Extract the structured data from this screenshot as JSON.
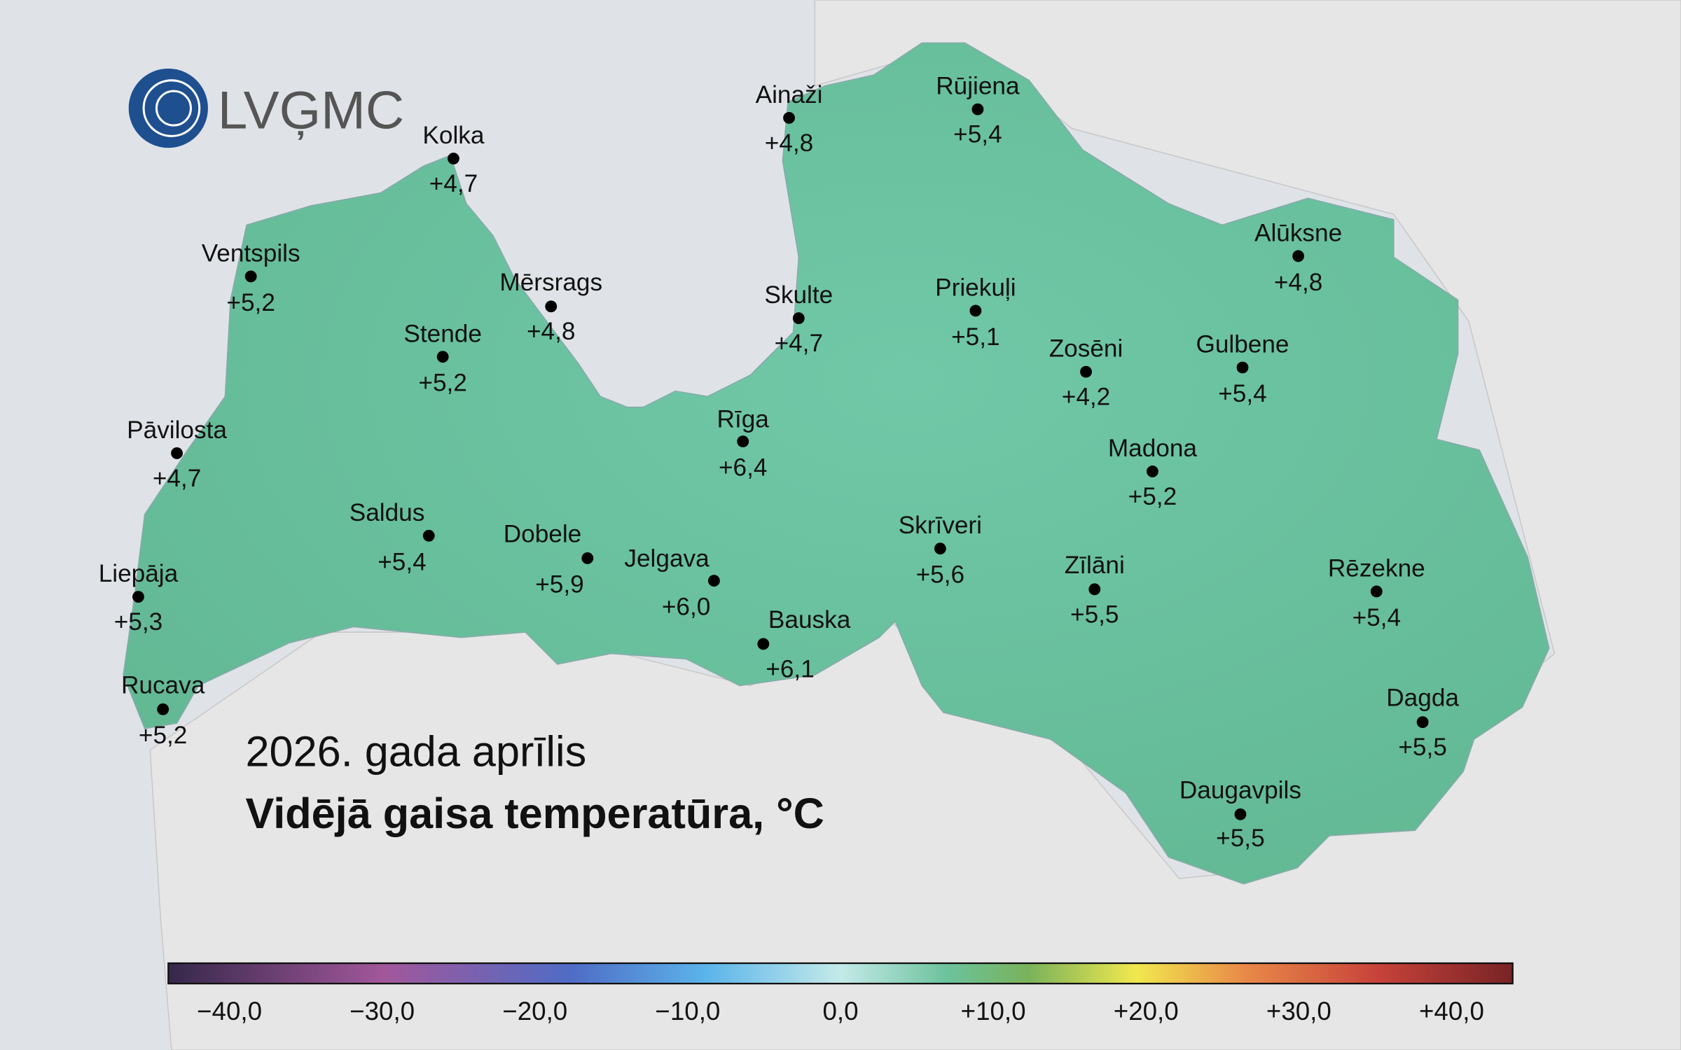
{
  "logo": "LVĢMC",
  "title": {
    "period": "2026. gada aprīlis",
    "subject": "Vidējā gaisa temperatūra, °C"
  },
  "stations": [
    {
      "name": "Kolka",
      "value": "+4,7"
    },
    {
      "name": "Ventspils",
      "value": "+5,2"
    },
    {
      "name": "Mērsrags",
      "value": "+4,8"
    },
    {
      "name": "Stende",
      "value": "+5,2"
    },
    {
      "name": "Pāvilosta",
      "value": "+4,7"
    },
    {
      "name": "Saldus",
      "value": "+5,4"
    },
    {
      "name": "Liepāja",
      "value": "+5,3"
    },
    {
      "name": "Rucava",
      "value": "+5,2"
    },
    {
      "name": "Dobele",
      "value": "+5,9"
    },
    {
      "name": "Jelgava",
      "value": "+6,0"
    },
    {
      "name": "Bauska",
      "value": "+6,1"
    },
    {
      "name": "Rīga",
      "value": "+6,4"
    },
    {
      "name": "Ainaži",
      "value": "+4,8"
    },
    {
      "name": "Skulte",
      "value": "+4,7"
    },
    {
      "name": "Rūjiena",
      "value": "+5,4"
    },
    {
      "name": "Priekuļi",
      "value": "+5,1"
    },
    {
      "name": "Zosēni",
      "value": "+4,2"
    },
    {
      "name": "Alūksne",
      "value": "+4,8"
    },
    {
      "name": "Gulbene",
      "value": "+5,4"
    },
    {
      "name": "Madona",
      "value": "+5,2"
    },
    {
      "name": "Skrīveri",
      "value": "+5,6"
    },
    {
      "name": "Zīlāni",
      "value": "+5,5"
    },
    {
      "name": "Rēzekne",
      "value": "+5,4"
    },
    {
      "name": "Dagda",
      "value": "+5,5"
    },
    {
      "name": "Daugavpils",
      "value": "+5,5"
    }
  ],
  "colorbar": {
    "ticks": [
      "−40,0",
      "−30,0",
      "−20,0",
      "−10,0",
      "0,0",
      "+10,0",
      "+20,0",
      "+30,0",
      "+40,0"
    ]
  }
}
